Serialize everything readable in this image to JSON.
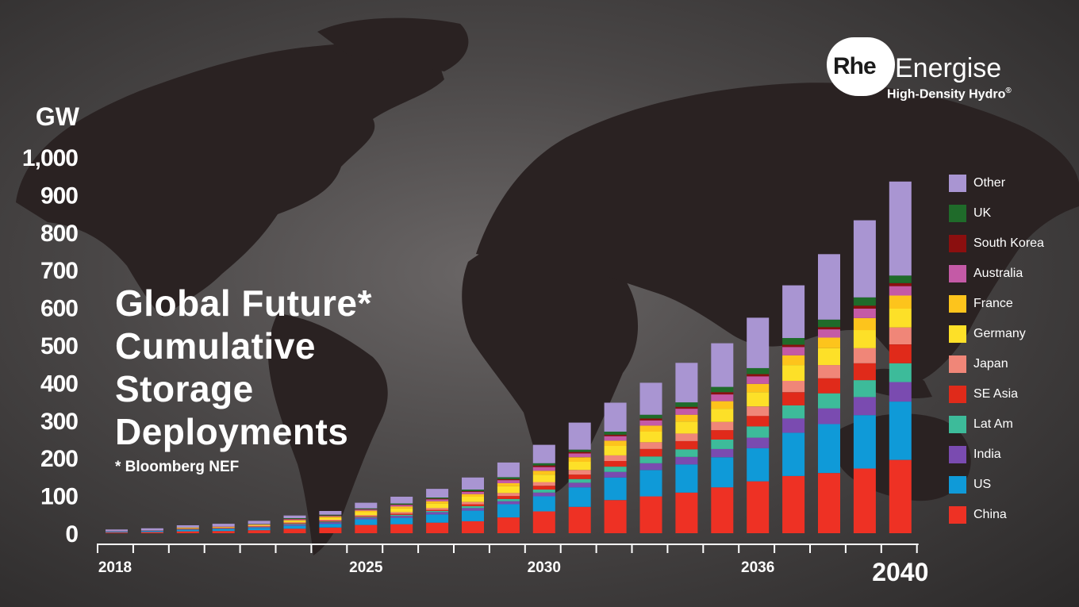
{
  "logo": {
    "mark": "Rhe",
    "name": "Energise",
    "tagline": "High-Density Hydro",
    "registered": "®"
  },
  "title_lines": [
    "Global Future*",
    "Cumulative",
    "Storage",
    "Deployments"
  ],
  "source": "*   Bloomberg NEF",
  "chart_data": {
    "type": "bar",
    "stacked": true,
    "ylabel": "GW",
    "ylim": [
      0,
      1000
    ],
    "yticks": [
      "0",
      "100",
      "200",
      "300",
      "400",
      "500",
      "600",
      "700",
      "800",
      "900",
      "1,000"
    ],
    "xtick_labels": [
      {
        "category": "2018",
        "text": "2018"
      },
      {
        "category": "2025",
        "text": "2025"
      },
      {
        "category": "2030",
        "text": "2030"
      },
      {
        "category": "2036",
        "text": "2036"
      },
      {
        "category": "2040",
        "text": "2040"
      }
    ],
    "grid": false,
    "legend_position": "right",
    "categories": [
      "2018",
      "2019",
      "2020",
      "2021",
      "2022",
      "2023",
      "2024",
      "2025",
      "2026",
      "2027",
      "2028",
      "2029",
      "2030",
      "2031",
      "2032",
      "2033",
      "2034",
      "2035",
      "2036",
      "2037",
      "2038",
      "2039",
      "2040"
    ],
    "series": [
      {
        "name": "China",
        "color": "#ee3124",
        "values": [
          2,
          3,
          5,
          6,
          8,
          12,
          15,
          22,
          24,
          28,
          32,
          42,
          58,
          70,
          88,
          98,
          108,
          122,
          138,
          152,
          160,
          172,
          195
        ]
      },
      {
        "name": "US",
        "color": "#0f9ad8",
        "values": [
          2,
          3,
          4,
          5,
          6,
          8,
          10,
          15,
          17,
          22,
          28,
          35,
          40,
          52,
          60,
          70,
          75,
          80,
          88,
          115,
          130,
          142,
          155
        ]
      },
      {
        "name": "India",
        "color": "#7a4bb0",
        "values": [
          1,
          1,
          1,
          1,
          2,
          3,
          4,
          4,
          5,
          6,
          7,
          8,
          10,
          12,
          15,
          18,
          20,
          22,
          28,
          38,
          42,
          48,
          52
        ]
      },
      {
        "name": "Lat Am",
        "color": "#3dbb9a",
        "values": [
          0,
          0,
          1,
          1,
          1,
          2,
          2,
          2,
          3,
          3,
          5,
          6,
          8,
          10,
          14,
          18,
          20,
          25,
          30,
          35,
          40,
          45,
          50
        ]
      },
      {
        "name": "SE Asia",
        "color": "#e02a1a",
        "values": [
          0,
          0,
          1,
          1,
          1,
          2,
          2,
          2,
          3,
          3,
          5,
          8,
          10,
          12,
          15,
          20,
          22,
          25,
          28,
          35,
          40,
          45,
          50
        ]
      },
      {
        "name": "Japan",
        "color": "#f08678",
        "values": [
          1,
          1,
          1,
          1,
          2,
          2,
          3,
          3,
          4,
          5,
          6,
          8,
          10,
          12,
          15,
          18,
          20,
          22,
          25,
          30,
          35,
          40,
          45
        ]
      },
      {
        "name": "Germany",
        "color": "#fde028",
        "values": [
          0,
          0,
          1,
          1,
          2,
          4,
          5,
          8,
          10,
          12,
          14,
          18,
          20,
          22,
          25,
          28,
          32,
          35,
          38,
          42,
          45,
          48,
          50
        ]
      },
      {
        "name": "France",
        "color": "#fdc41c",
        "values": [
          0,
          0,
          1,
          1,
          1,
          2,
          3,
          4,
          5,
          6,
          7,
          8,
          10,
          12,
          14,
          16,
          18,
          20,
          22,
          26,
          28,
          32,
          35
        ]
      },
      {
        "name": "Australia",
        "color": "#c45aa6",
        "values": [
          0,
          0,
          0,
          1,
          1,
          2,
          2,
          3,
          4,
          5,
          6,
          8,
          10,
          10,
          12,
          14,
          16,
          18,
          20,
          22,
          22,
          25,
          25
        ]
      },
      {
        "name": "South Korea",
        "color": "#8b0f0f",
        "values": [
          0,
          0,
          0,
          0,
          0,
          1,
          1,
          1,
          1,
          2,
          2,
          3,
          4,
          4,
          4,
          5,
          5,
          6,
          6,
          6,
          6,
          8,
          8
        ]
      },
      {
        "name": "UK",
        "color": "#1f6b2a",
        "values": [
          0,
          0,
          0,
          0,
          1,
          2,
          2,
          2,
          3,
          3,
          4,
          5,
          6,
          6,
          8,
          10,
          12,
          14,
          16,
          18,
          20,
          22,
          20
        ]
      },
      {
        "name": "Other",
        "color": "#a995d2",
        "values": [
          4,
          5,
          6,
          7,
          8,
          7,
          10,
          15,
          18,
          23,
          32,
          39,
          49,
          72,
          77,
          85,
          105,
          116,
          134,
          140,
          174,
          205,
          250
        ]
      }
    ]
  }
}
